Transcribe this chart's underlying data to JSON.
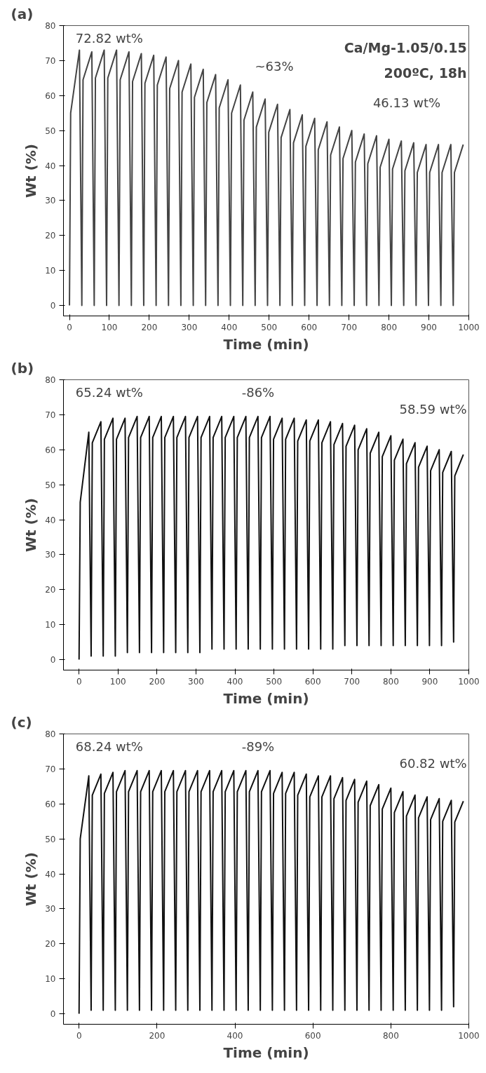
{
  "chart_data": [
    {
      "type": "line",
      "title": "(a)",
      "xlabel": "Time (min)",
      "ylabel": "Wt (%)",
      "xlim": [
        -15,
        1000
      ],
      "ylim": [
        -3,
        80
      ],
      "xticks": [
        0,
        100,
        200,
        300,
        400,
        500,
        600,
        700,
        800,
        900,
        1000
      ],
      "yticks": [
        0,
        10,
        20,
        30,
        40,
        50,
        60,
        70,
        80
      ],
      "grid": false,
      "x": [
        0,
        3,
        25,
        31,
        34,
        56,
        62,
        65,
        87,
        93,
        96,
        118,
        124,
        127,
        149,
        155,
        158,
        180,
        186,
        189,
        211,
        217,
        220,
        242,
        248,
        251,
        273,
        279,
        282,
        304,
        310,
        313,
        335,
        341,
        344,
        366,
        372,
        375,
        397,
        403,
        406,
        428,
        434,
        437,
        459,
        465,
        468,
        490,
        496,
        499,
        521,
        527,
        530,
        552,
        558,
        561,
        583,
        589,
        592,
        614,
        620,
        623,
        645,
        651,
        654,
        676,
        682,
        685,
        707,
        713,
        716,
        738,
        744,
        747,
        769,
        775,
        778,
        800,
        806,
        809,
        831,
        837,
        840,
        862,
        868,
        871,
        893,
        899,
        902,
        924,
        930,
        933,
        955,
        961,
        964,
        986
      ],
      "series": [
        {
          "color": "#444444",
          "values": [
            0,
            55,
            73,
            0,
            64.5,
            72.5,
            0,
            65,
            73,
            0,
            65,
            73,
            0,
            64.5,
            72.5,
            0,
            64,
            72,
            0,
            63.5,
            71.5,
            0,
            63,
            71,
            0,
            62,
            70,
            0,
            61,
            69,
            0,
            59.5,
            67.5,
            0,
            58,
            66,
            0,
            56.5,
            64.5,
            0,
            55,
            63,
            0,
            53,
            61,
            0,
            51,
            59,
            0,
            49.5,
            57.5,
            0,
            48,
            56,
            0,
            46.5,
            54.5,
            0,
            45.5,
            53.5,
            0,
            44.5,
            52.5,
            0,
            43,
            51,
            0,
            42,
            50,
            0,
            41,
            49,
            0,
            40.5,
            48.5,
            0,
            39.5,
            47.5,
            0,
            39,
            47,
            0,
            38.5,
            46.5,
            0,
            38,
            46,
            0,
            38,
            46,
            0,
            38,
            46,
            0,
            38,
            46
          ]
        }
      ],
      "annotations": [
        "72.82 wt%",
        "Ca/Mg-1.05/0.15",
        "200ºC, 18h",
        "~63%",
        "46.13 wt%"
      ]
    },
    {
      "type": "line",
      "title": "(b)",
      "xlabel": "Time (min)",
      "ylabel": "Wt (%)",
      "xlim": [
        -40,
        1000
      ],
      "ylim": [
        -3,
        80
      ],
      "xticks": [
        0,
        100,
        200,
        300,
        400,
        500,
        600,
        700,
        800,
        900,
        1000
      ],
      "yticks": [
        0,
        10,
        20,
        30,
        40,
        50,
        60,
        70,
        80
      ],
      "grid": false,
      "x": [
        0,
        3,
        25,
        31,
        34,
        56,
        62,
        65,
        87,
        93,
        96,
        118,
        124,
        127,
        149,
        155,
        158,
        180,
        186,
        189,
        211,
        217,
        220,
        242,
        248,
        251,
        273,
        279,
        282,
        304,
        310,
        313,
        335,
        341,
        344,
        366,
        372,
        375,
        397,
        403,
        406,
        428,
        434,
        437,
        459,
        465,
        468,
        490,
        496,
        499,
        521,
        527,
        530,
        552,
        558,
        561,
        583,
        589,
        592,
        614,
        620,
        623,
        645,
        651,
        654,
        676,
        682,
        685,
        707,
        713,
        716,
        738,
        744,
        747,
        769,
        775,
        778,
        800,
        806,
        809,
        831,
        837,
        840,
        862,
        868,
        871,
        893,
        899,
        902,
        924,
        930,
        933,
        955,
        961,
        964,
        986
      ],
      "series": [
        {
          "color": "#111111",
          "values": [
            0,
            45,
            65,
            1,
            62,
            68,
            1,
            63,
            69,
            1,
            63,
            69,
            2,
            63.5,
            69.5,
            2,
            63.5,
            69.5,
            2,
            63.5,
            69.5,
            2,
            63.5,
            69.5,
            2,
            63.5,
            69.5,
            2,
            63.5,
            69.5,
            2,
            63.5,
            69.5,
            3,
            63.5,
            69.5,
            3,
            63.5,
            69.5,
            3,
            63.5,
            69.5,
            3,
            63.5,
            69.5,
            3,
            63.5,
            69.5,
            3,
            63,
            69,
            3,
            63,
            69,
            3,
            62.5,
            68.5,
            3,
            62.5,
            68.5,
            3,
            62,
            68,
            3,
            61.5,
            67.5,
            4,
            61,
            67,
            4,
            60,
            66,
            4,
            59,
            65,
            4,
            58,
            64,
            4,
            57,
            63,
            4,
            56,
            62,
            4,
            55,
            61,
            4,
            54,
            60,
            4,
            53.5,
            59.5,
            5,
            52.5,
            58.6
          ]
        }
      ],
      "annotations": [
        "65.24 wt%",
        "-86%",
        "58.59 wt%"
      ]
    },
    {
      "type": "line",
      "title": "(c)",
      "xlabel": "Time (min)",
      "ylabel": "Wt (%)",
      "xlim": [
        -40,
        1000
      ],
      "ylim": [
        -3,
        80
      ],
      "xticks": [
        0,
        200,
        400,
        600,
        800,
        1000
      ],
      "yticks": [
        0,
        10,
        20,
        30,
        40,
        50,
        60,
        70,
        80
      ],
      "grid": false,
      "x": [
        0,
        3,
        25,
        31,
        34,
        56,
        62,
        65,
        87,
        93,
        96,
        118,
        124,
        127,
        149,
        155,
        158,
        180,
        186,
        189,
        211,
        217,
        220,
        242,
        248,
        251,
        273,
        279,
        282,
        304,
        310,
        313,
        335,
        341,
        344,
        366,
        372,
        375,
        397,
        403,
        406,
        428,
        434,
        437,
        459,
        465,
        468,
        490,
        496,
        499,
        521,
        527,
        530,
        552,
        558,
        561,
        583,
        589,
        592,
        614,
        620,
        623,
        645,
        651,
        654,
        676,
        682,
        685,
        707,
        713,
        716,
        738,
        744,
        747,
        769,
        775,
        778,
        800,
        806,
        809,
        831,
        837,
        840,
        862,
        868,
        871,
        893,
        899,
        902,
        924,
        930,
        933,
        955,
        961,
        964,
        986
      ],
      "series": [
        {
          "color": "#111111",
          "values": [
            0,
            50,
            68,
            1,
            62.5,
            68.5,
            1,
            63,
            69,
            1,
            63.5,
            69.5,
            1,
            63.5,
            69.5,
            1,
            63.5,
            69.5,
            1,
            63.5,
            69.5,
            1,
            63.5,
            69.5,
            1,
            63.5,
            69.5,
            1,
            63.5,
            69.5,
            1,
            63.5,
            69.5,
            1,
            63.5,
            69.5,
            1,
            63.5,
            69.5,
            1,
            63.5,
            69.5,
            1,
            63.5,
            69.5,
            1,
            63.5,
            69.5,
            1,
            63,
            69,
            1,
            63,
            69,
            1,
            62.5,
            68.5,
            1,
            62,
            68,
            1,
            62,
            68,
            1,
            61.5,
            67.5,
            1,
            61,
            67,
            1,
            60.5,
            66.5,
            1,
            59.5,
            65.5,
            1,
            58.5,
            64.5,
            1,
            57.5,
            63.5,
            1,
            56.5,
            62.5,
            1,
            56,
            62,
            1,
            55.5,
            61.5,
            1,
            55,
            61,
            2,
            54.8,
            60.8
          ]
        }
      ],
      "annotations": [
        "68.24 wt%",
        "-89%",
        "60.82 wt%"
      ]
    }
  ]
}
